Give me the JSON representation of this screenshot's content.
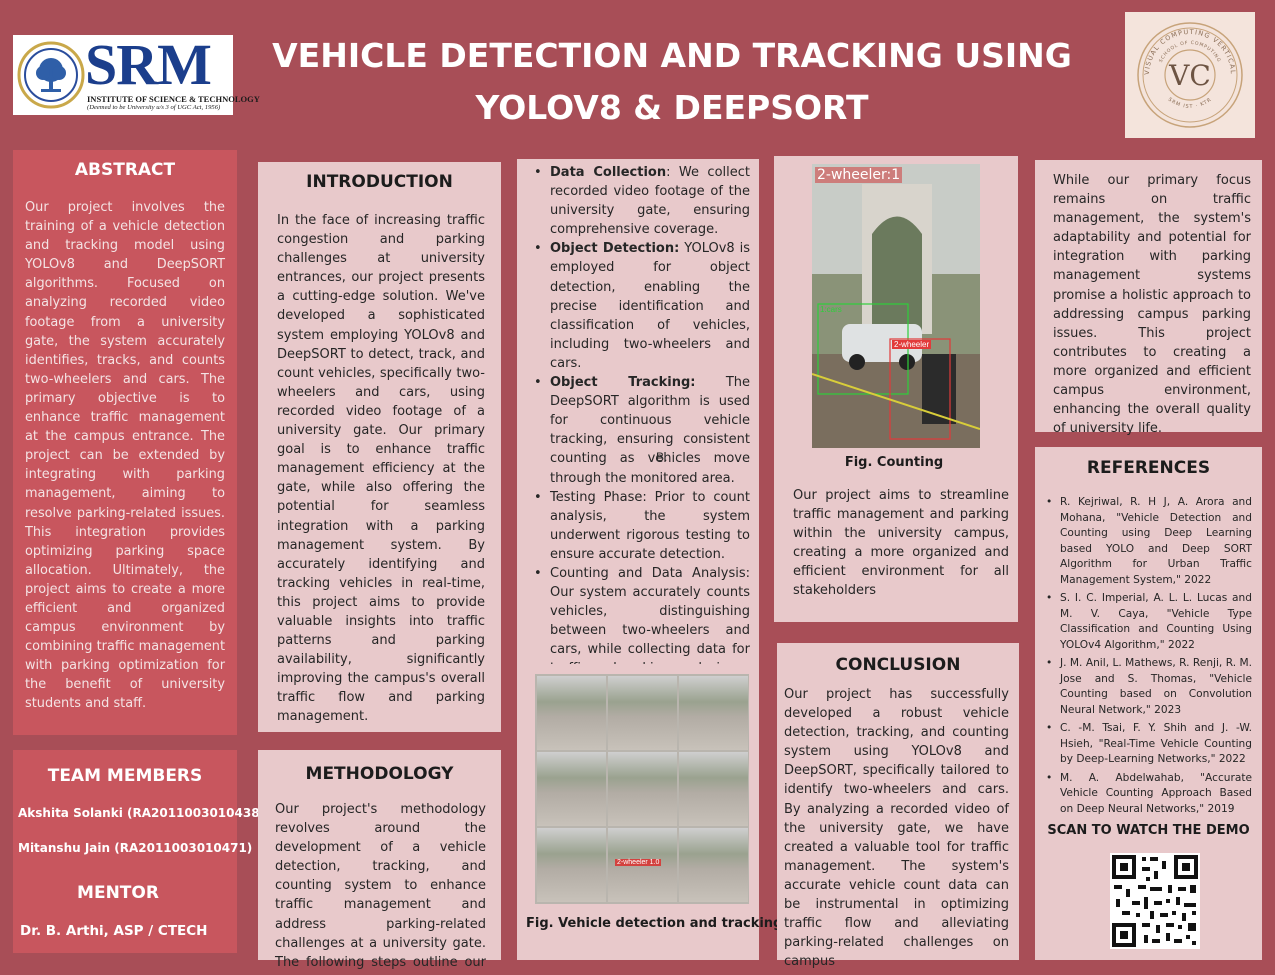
{
  "header": {
    "title": "VEHICLE DETECTION AND TRACKING USING YOLOV8 & DEEPSORT",
    "srm_logo": {
      "wordmark": "SRM",
      "line1": "INSTITUTE OF SCIENCE & TECHNOLOGY",
      "line2": "(Deemed to be University u/s 3 of UGC Act, 1956)"
    },
    "vc_logo": {
      "letters": "VC",
      "ring_text": "VISUAL COMPUTING VERTICAL",
      "inner_text": "SCHOOL OF COMPUTING",
      "bottom_text": "SRM IST · KTR"
    }
  },
  "abstract": {
    "heading": "ABSTRACT",
    "text": "Our project involves the training of a vehicle detection and tracking model using YOLOv8 and DeepSORT algorithms. Focused on analyzing recorded video footage from a university gate, the system accurately identifies, tracks, and counts two-wheelers and cars. The primary objective is to enhance traffic management at the campus entrance. The project can be extended by integrating with parking management, aiming to resolve parking-related issues. This integration provides optimizing parking space allocation. Ultimately, the project aims to create a more efficient and organized campus environment by combining traffic management with parking optimization for the benefit of university students and staff."
  },
  "team": {
    "heading": "TEAM MEMBERS",
    "members": [
      "Akshita Solanki (RA2011003010438)",
      "Mitanshu Jain (RA2011003010471)"
    ],
    "mentor_heading": "MENTOR",
    "mentor": "Dr. B. Arthi, ASP / CTECH"
  },
  "introduction": {
    "heading": "INTRODUCTION",
    "text": "In the face of increasing traffic congestion and parking challenges at university entrances, our project presents a cutting-edge solution. We've developed a sophisticated system employing YOLOv8 and DeepSORT to detect, track, and count vehicles, specifically two-wheelers and cars, using recorded video footage of a university gate. Our primary goal is to enhance traffic management efficiency at the gate, while also offering the potential for seamless integration with a parking management system. By accurately identifying and tracking vehicles in real-time, this project aims to provide valuable insights into traffic patterns and parking availability, significantly improving the campus's overall traffic flow and parking management."
  },
  "methodology": {
    "heading": "METHODOLOGY",
    "text": "Our project's methodology revolves around the development of a vehicle detection, tracking, and counting system to enhance traffic management and address parking-related challenges at a university gate. The following steps outline our approach:"
  },
  "steps": [
    {
      "bold": "Data Collection",
      "rest": ": We collect recorded video footage of the university gate, ensuring comprehensive coverage."
    },
    {
      "bold": "Object Detection:",
      "rest": " YOLOv8 is employed for object detection, enabling the precise identification and classification of vehicles, including two-wheelers and cars."
    },
    {
      "bold": "Object Tracking:",
      "rest": " The DeepSORT algorithm is used for continuous vehicle tracking, ensuring consistent counting as vehicles move through the monitored area."
    },
    {
      "bold": "",
      "rest": "Testing Phase: Prior to count analysis, the system underwent rigorous testing to ensure accurate detection."
    },
    {
      "bold": "",
      "rest": "Counting and Data Analysis: Our system accurately counts vehicles, distinguishing between two-wheelers and cars, while collecting data for traffic and parking analysis."
    }
  ],
  "stray_letter": "B.",
  "figures": {
    "grid_caption": "Fig. Vehicle detection and tracking",
    "counting_caption": "Fig. Counting",
    "counting_overlay": "2-wheeler:1",
    "car_label": "1:cars",
    "wheeler_label": "2-wheeler",
    "grid_label": "2-wheeler 1.0"
  },
  "aims": {
    "text": "Our project aims to streamline traffic management and parking within the university campus, creating a more organized and efficient environment for all stakeholders"
  },
  "conclusion": {
    "heading": "CONCLUSION",
    "text": "Our project has successfully developed a robust vehicle detection, tracking, and counting system using YOLOv8 and DeepSORT, specifically tailored to identify two-wheelers and cars. By analyzing a recorded video of the university gate, we have created a valuable tool for traffic management. The system's accurate vehicle count data can be instrumental in optimizing traffic flow and alleviating parking-related challenges on campus"
  },
  "future": {
    "text": "While our primary focus remains on traffic management, the system's adaptability and potential for integration with parking management systems promise a holistic approach to addressing campus parking issues. This project contributes to creating a more organized and efficient campus environment, enhancing the overall quality of university life."
  },
  "references": {
    "heading": "REFERENCES",
    "items": [
      "R. Kejriwal, R. H J, A. Arora and Mohana, \"Vehicle Detection and Counting using Deep Learning based YOLO and Deep SORT Algorithm for Urban Traffic Management System,\" 2022",
      "S. I. C. Imperial, A. L. L. Lucas and M. V. Caya, \"Vehicle Type Classification and Counting Using YOLOv4 Algorithm,\" 2022",
      "J. M. Anil, L. Mathews, R. Renji, R. M. Jose and S. Thomas, \"Vehicle Counting based on Convolution Neural Network,\" 2023",
      "C. -M. Tsai, F. Y. Shih and J. -W. Hsieh, \"Real-Time Vehicle Counting by Deep-Learning Networks,\" 2022",
      "M. A. Abdelwahab, \"Accurate Vehicle Counting Approach Based on Deep Neural Networks,\" 2019"
    ]
  },
  "demo": {
    "heading": "SCAN TO WATCH THE DEMO"
  }
}
